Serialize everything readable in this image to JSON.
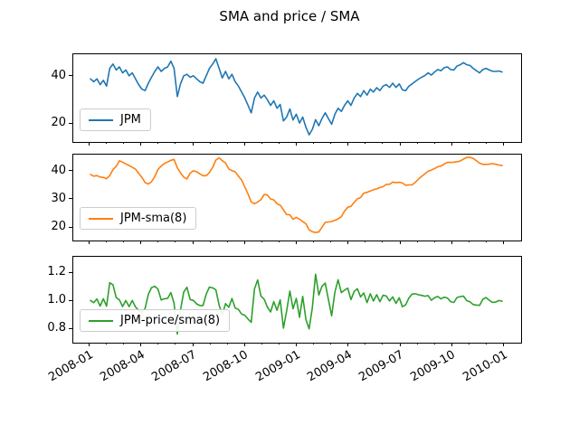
{
  "title": "SMA and price / SMA",
  "colors": {
    "price_line": "#1f77b4",
    "sma_line": "#ff7f0e",
    "ratio_line": "#2ca02c",
    "axis": "#000000",
    "legend_border": "#cccccc"
  },
  "chart_data": {
    "type": "line",
    "title": "SMA and price / SMA",
    "grid": false,
    "legend_position": "lower left",
    "x_tick_labels": [
      "2008-01",
      "2008-04",
      "2008-07",
      "2008-10",
      "2009-01",
      "2009-04",
      "2009-07",
      "2009-10",
      "2010-01"
    ],
    "panels": [
      {
        "legend": "JPM",
        "color": "#1f77b4",
        "ylim": [
          12.2,
          48.9
        ],
        "ytick_values": [
          20,
          40
        ],
        "ytick_labels": [
          "20",
          "40"
        ],
        "series_key": "price"
      },
      {
        "legend": "JPM-sma(8)",
        "color": "#ff7f0e",
        "ylim": [
          15.3,
          45.6
        ],
        "ytick_values": [
          20,
          30,
          40
        ],
        "ytick_labels": [
          "20",
          "30",
          "40"
        ],
        "series_key": "sma",
        "derived_from": "price",
        "sma_window_label": 8
      },
      {
        "legend": "JPM-price/sma(8)",
        "color": "#2ca02c",
        "ylim": [
          0.7,
          1.31
        ],
        "ytick_values": [
          1.2,
          1.0,
          0.8
        ],
        "ytick_labels": [
          "1.2",
          "1.0",
          "0.8"
        ],
        "series_key": "ratio",
        "derived_from": "price"
      }
    ],
    "display_smoothing_points": 4,
    "price": [
      38.6,
      37.4,
      38.6,
      36.2,
      38.0,
      35.6,
      43.0,
      44.8,
      42.3,
      43.6,
      41.1,
      42.3,
      39.9,
      41.1,
      38.6,
      36.2,
      34.3,
      33.7,
      36.8,
      39.3,
      41.7,
      43.6,
      41.7,
      43.0,
      43.6,
      46.0,
      43.0,
      31.2,
      36.5,
      39.9,
      40.5,
      39.3,
      39.9,
      38.6,
      37.4,
      36.8,
      39.9,
      43.0,
      44.8,
      47.0,
      43.0,
      39.0,
      41.7,
      38.6,
      40.5,
      37.4,
      35.6,
      33.1,
      30.6,
      27.5,
      24.4,
      30.6,
      33.1,
      30.6,
      31.8,
      29.9,
      27.5,
      29.4,
      26.3,
      27.9,
      21.0,
      22.6,
      26.0,
      21.4,
      23.8,
      20.1,
      22.6,
      18.3,
      15.2,
      17.5,
      21.5,
      19.0,
      22.0,
      24.4,
      22.0,
      19.6,
      23.8,
      26.3,
      25.0,
      27.5,
      29.4,
      27.5,
      30.6,
      32.5,
      31.2,
      33.7,
      31.8,
      34.3,
      33.1,
      34.9,
      33.7,
      35.6,
      36.2,
      35.0,
      36.8,
      35.0,
      36.5,
      34.0,
      33.7,
      35.5,
      36.5,
      37.5,
      38.5,
      39.3,
      40.0,
      41.1,
      40.2,
      41.5,
      42.5,
      42.0,
      43.3,
      43.6,
      42.5,
      42.3,
      44.0,
      44.5,
      45.4,
      44.5,
      44.2,
      43.0,
      42.0,
      41.1,
      42.5,
      43.0,
      42.3,
      41.8,
      41.7,
      41.9,
      41.5
    ]
  }
}
